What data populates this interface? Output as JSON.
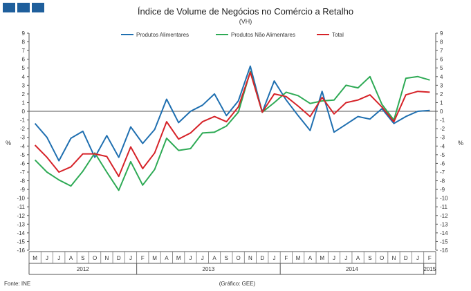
{
  "chart_data": {
    "type": "line",
    "title": "Índice de Volume de Negócios no Comércio a Retalho",
    "subtitle": "(VH)",
    "ylabel": "%",
    "ylabel_right": "%",
    "ylim": [
      -16,
      9
    ],
    "yticks": [
      9,
      8,
      7,
      6,
      5,
      4,
      3,
      2,
      1,
      0,
      -1,
      -2,
      -3,
      -4,
      -5,
      -6,
      -7,
      -8,
      -9,
      -10,
      -11,
      -12,
      -13,
      -14,
      -15,
      -16
    ],
    "months": [
      "M",
      "J",
      "J",
      "A",
      "S",
      "O",
      "N",
      "D",
      "J",
      "F",
      "M",
      "A",
      "M",
      "J",
      "J",
      "A",
      "S",
      "O",
      "N",
      "D",
      "J",
      "F",
      "M",
      "A",
      "M",
      "J",
      "J",
      "A",
      "S",
      "O",
      "N",
      "D",
      "J",
      "F"
    ],
    "years": [
      {
        "label": "2012",
        "start": 0,
        "end": 9
      },
      {
        "label": "2013",
        "start": 9,
        "end": 21
      },
      {
        "label": "2014",
        "start": 21,
        "end": 33
      },
      {
        "label": "2015",
        "start": 33,
        "end": 35
      }
    ],
    "series": [
      {
        "name": "Produtos Alimentares",
        "color": "#1f6fb0",
        "values": [
          -1.4,
          -3.0,
          -5.7,
          -3.1,
          -2.3,
          -5.3,
          -2.8,
          -5.3,
          -1.8,
          -3.7,
          -2.1,
          1.4,
          -1.3,
          0.0,
          0.7,
          2.0,
          -0.5,
          1.2,
          5.2,
          -0.1,
          3.5,
          1.3,
          -0.5,
          -2.2,
          2.3,
          -2.4,
          -1.5,
          -0.6,
          -0.9,
          0.3,
          -1.4,
          -0.6,
          0.0,
          0.1
        ]
      },
      {
        "name": "Produtos Não Alimentares",
        "color": "#2eaa55",
        "values": [
          -5.6,
          -7.0,
          -7.9,
          -8.6,
          -6.9,
          -4.8,
          -7.0,
          -9.1,
          -5.8,
          -8.5,
          -6.7,
          -3.1,
          -4.5,
          -4.3,
          -2.5,
          -2.4,
          -1.7,
          -0.1,
          4.6,
          -0.1,
          1.0,
          2.2,
          1.8,
          0.9,
          1.2,
          1.3,
          3.0,
          2.7,
          4.0,
          0.8,
          -1.0,
          3.8,
          4.0,
          3.6
        ]
      },
      {
        "name": "Total",
        "color": "#d62228",
        "values": [
          -3.9,
          -5.3,
          -7.0,
          -6.4,
          -4.9,
          -4.9,
          -5.2,
          -7.5,
          -4.1,
          -6.6,
          -4.8,
          -1.2,
          -3.2,
          -2.5,
          -1.2,
          -0.6,
          -1.2,
          0.5,
          4.5,
          -0.1,
          2.0,
          1.7,
          0.6,
          -0.6,
          1.6,
          -0.3,
          1.0,
          1.3,
          1.9,
          0.5,
          -1.2,
          1.9,
          2.3,
          2.2
        ]
      }
    ]
  },
  "footer": {
    "source": "Fonte: INE",
    "credit": "(Gráfico: GEE)"
  }
}
